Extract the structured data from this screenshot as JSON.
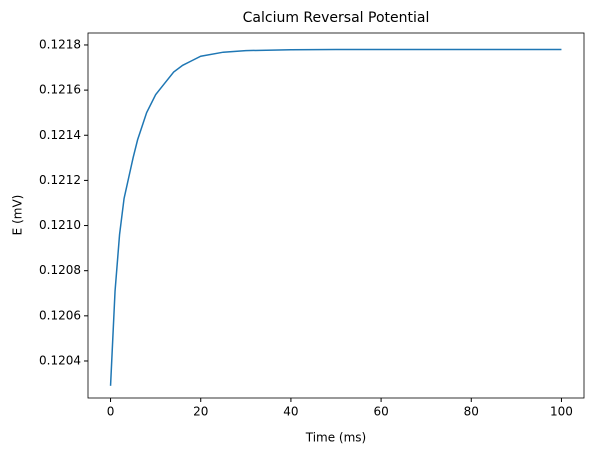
{
  "chart_data": {
    "type": "line",
    "title": "Calcium Reversal Potential",
    "x_label": "Time (ms)",
    "y_label": "E (mV)",
    "x": [
      0,
      1,
      2,
      3,
      4,
      5,
      6,
      7,
      8,
      10,
      12,
      14,
      16,
      18,
      20,
      25,
      30,
      40,
      50,
      60,
      70,
      80,
      90,
      100
    ],
    "series": [
      {
        "name": "E",
        "color": "#1f77b4",
        "values": [
          0.12029,
          0.12071,
          0.12096,
          0.12112,
          0.12121,
          0.1213,
          0.12138,
          0.12144,
          0.1215,
          0.12158,
          0.12163,
          0.12168,
          0.12171,
          0.12173,
          0.12175,
          0.121768,
          0.121775,
          0.121779,
          0.12178,
          0.12178,
          0.12178,
          0.12178,
          0.12178,
          0.12178
        ]
      }
    ],
    "xlim": [
      -5,
      105
    ],
    "xticks": [
      0,
      20,
      40,
      60,
      80,
      100
    ],
    "ylim": [
      0.120236,
      0.121853
    ],
    "yticks": [
      0.1204,
      0.1206,
      0.1208,
      {
        "value": 0.121,
        "label": "0.1210"
      },
      0.1212,
      0.1214,
      0.1216,
      0.1218
    ],
    "grid": false
  }
}
